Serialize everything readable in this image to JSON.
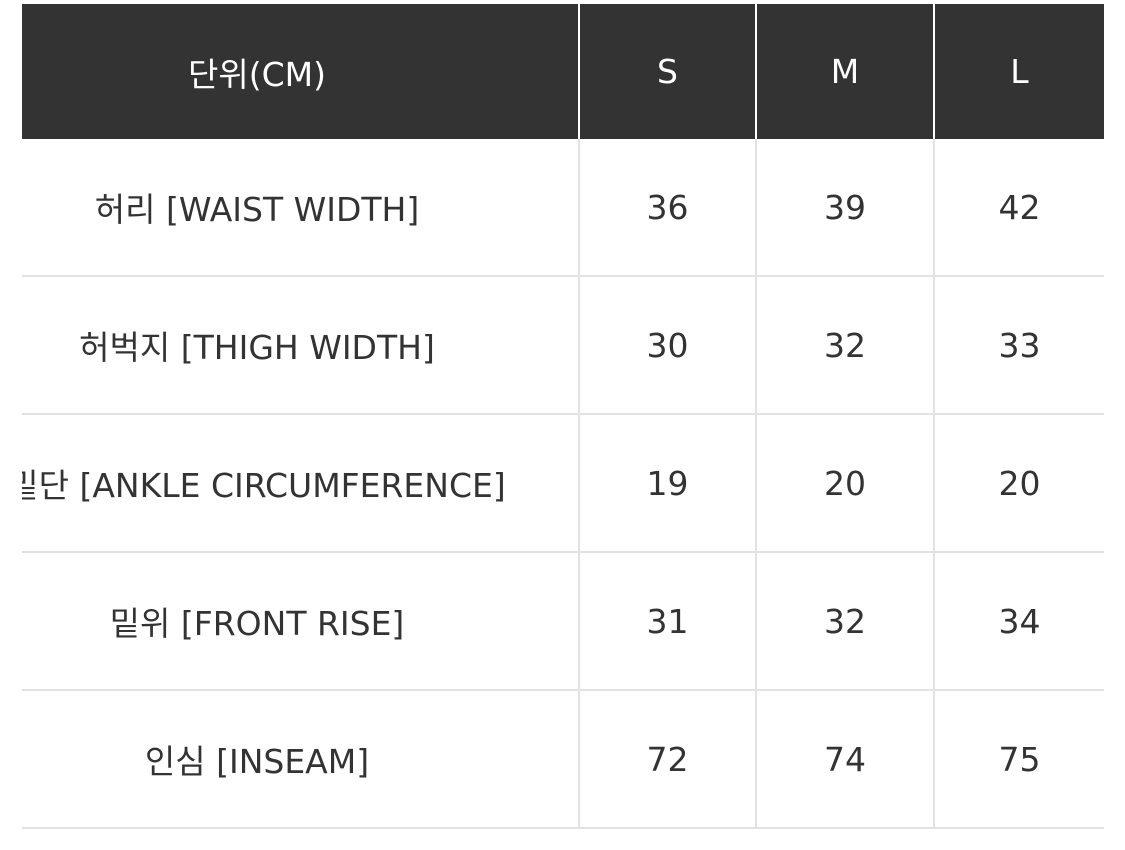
{
  "header": {
    "unit": "단위(CM)",
    "sizes": [
      "S",
      "M",
      "L"
    ]
  },
  "rows": [
    {
      "label": "허리 [WAIST WIDTH]",
      "values": [
        "36",
        "39",
        "42"
      ]
    },
    {
      "label": "허벅지 [THIGH WIDTH]",
      "values": [
        "30",
        "32",
        "33"
      ]
    },
    {
      "label": "밑단 [ANKLE CIRCUMFERENCE]",
      "values": [
        "19",
        "20",
        "20"
      ]
    },
    {
      "label": "밑위 [FRONT RISE]",
      "values": [
        "31",
        "32",
        "34"
      ]
    },
    {
      "label": "인심 [INSEAM]",
      "values": [
        "72",
        "74",
        "75"
      ]
    }
  ],
  "colors": {
    "header_bg": "#333333",
    "header_text": "#ffffff",
    "text": "#333333",
    "border": "#e2e2e2"
  }
}
